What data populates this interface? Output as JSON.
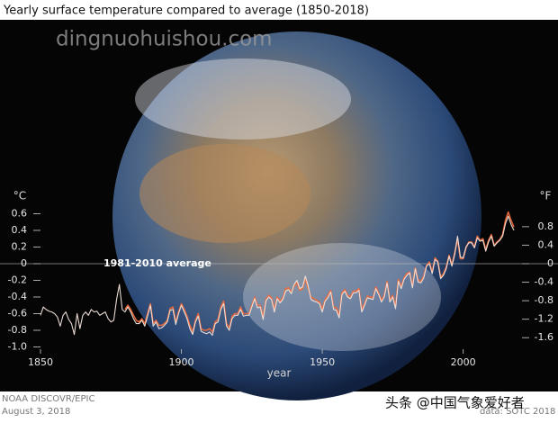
{
  "chart_data": {
    "type": "line",
    "title": "Yearly surface temperature compared to average (1850-2018)",
    "y_label": "°C",
    "y2_label": "°F",
    "x_label": "year",
    "annotation": "1981-2010 average",
    "credits": [
      "NOAA DISCOVR/EPIC",
      "August 3, 2018",
      "data: SOTC 2018"
    ],
    "watermarks": [
      "dingnuohuishou.com",
      "头条 @中国气象爱好者"
    ],
    "x": [
      1850,
      1851,
      1852,
      1853,
      1854,
      1855,
      1856,
      1857,
      1858,
      1859,
      1860,
      1861,
      1862,
      1863,
      1864,
      1865,
      1866,
      1867,
      1868,
      1869,
      1870,
      1871,
      1872,
      1873,
      1874,
      1875,
      1876,
      1877,
      1878,
      1879,
      1880,
      1881,
      1882,
      1883,
      1884,
      1885,
      1886,
      1887,
      1888,
      1889,
      1890,
      1891,
      1892,
      1893,
      1894,
      1895,
      1896,
      1897,
      1898,
      1899,
      1900,
      1901,
      1902,
      1903,
      1904,
      1905,
      1906,
      1907,
      1908,
      1909,
      1910,
      1911,
      1912,
      1913,
      1914,
      1915,
      1916,
      1917,
      1918,
      1919,
      1920,
      1921,
      1922,
      1923,
      1924,
      1925,
      1926,
      1927,
      1928,
      1929,
      1930,
      1931,
      1932,
      1933,
      1934,
      1935,
      1936,
      1937,
      1938,
      1939,
      1940,
      1941,
      1942,
      1943,
      1944,
      1945,
      1946,
      1947,
      1948,
      1949,
      1950,
      1951,
      1952,
      1953,
      1954,
      1955,
      1956,
      1957,
      1958,
      1959,
      1960,
      1961,
      1962,
      1963,
      1964,
      1965,
      1966,
      1967,
      1968,
      1969,
      1970,
      1971,
      1972,
      1973,
      1974,
      1975,
      1976,
      1977,
      1978,
      1979,
      1980,
      1981,
      1982,
      1983,
      1984,
      1985,
      1986,
      1987,
      1988,
      1989,
      1990,
      1991,
      1992,
      1993,
      1994,
      1995,
      1996,
      1997,
      1998,
      1999,
      2000,
      2001,
      2002,
      2003,
      2004,
      2005,
      2006,
      2007,
      2008,
      2009,
      2010,
      2011,
      2012,
      2013,
      2014,
      2015,
      2016,
      2017,
      2018
    ],
    "series": [
      {
        "color": "#f3e4dc",
        "values": [
          -0.62,
          -0.52,
          -0.55,
          -0.57,
          -0.58,
          -0.6,
          -0.64,
          -0.75,
          -0.62,
          -0.58,
          -0.67,
          -0.72,
          -0.85,
          -0.6,
          -0.78,
          -0.62,
          -0.58,
          -0.62,
          -0.55,
          -0.58,
          -0.57,
          -0.62,
          -0.6,
          -0.58,
          -0.66,
          -0.7,
          -0.68,
          -0.43,
          -0.25,
          -0.55,
          -0.58,
          -0.52,
          -0.58,
          -0.66,
          -0.72,
          -0.72,
          -0.68,
          -0.75,
          -0.63,
          -0.5,
          -0.75,
          -0.7,
          -0.78,
          -0.77,
          -0.74,
          -0.7,
          -0.56,
          -0.55,
          -0.73,
          -0.6,
          -0.5,
          -0.58,
          -0.66,
          -0.78,
          -0.85,
          -0.7,
          -0.63,
          -0.81,
          -0.83,
          -0.84,
          -0.82,
          -0.86,
          -0.72,
          -0.7,
          -0.55,
          -0.48,
          -0.75,
          -0.8,
          -0.66,
          -0.62,
          -0.62,
          -0.55,
          -0.63,
          -0.62,
          -0.62,
          -0.52,
          -0.42,
          -0.53,
          -0.52,
          -0.67,
          -0.45,
          -0.4,
          -0.43,
          -0.58,
          -0.42,
          -0.47,
          -0.43,
          -0.33,
          -0.31,
          -0.36,
          -0.25,
          -0.2,
          -0.3,
          -0.28,
          -0.15,
          -0.27,
          -0.43,
          -0.45,
          -0.46,
          -0.48,
          -0.58,
          -0.45,
          -0.41,
          -0.34,
          -0.55,
          -0.56,
          -0.65,
          -0.37,
          -0.33,
          -0.4,
          -0.42,
          -0.35,
          -0.35,
          -0.32,
          -0.58,
          -0.5,
          -0.41,
          -0.42,
          -0.43,
          -0.3,
          -0.37,
          -0.46,
          -0.4,
          -0.23,
          -0.46,
          -0.4,
          -0.54,
          -0.21,
          -0.3,
          -0.19,
          -0.14,
          -0.11,
          -0.29,
          -0.06,
          -0.22,
          -0.23,
          -0.17,
          -0.03,
          0.0,
          -0.12,
          0.05,
          0.02,
          -0.18,
          -0.14,
          -0.06,
          0.09,
          -0.03,
          0.11,
          0.33,
          0.08,
          0.07,
          0.2,
          0.25,
          0.25,
          0.19,
          0.31,
          0.27,
          0.28,
          0.15,
          0.26,
          0.33,
          0.21,
          0.25,
          0.28,
          0.33,
          0.48,
          0.57,
          0.47,
          0.4
        ]
      },
      {
        "color": "#ec6a3c",
        "values": [
          null,
          null,
          null,
          null,
          null,
          null,
          null,
          null,
          null,
          null,
          null,
          null,
          null,
          null,
          null,
          null,
          null,
          null,
          null,
          null,
          null,
          null,
          null,
          null,
          null,
          null,
          null,
          null,
          null,
          null,
          -0.55,
          -0.5,
          -0.55,
          -0.62,
          -0.68,
          -0.7,
          -0.66,
          -0.72,
          -0.6,
          -0.48,
          -0.72,
          -0.68,
          -0.74,
          -0.74,
          -0.72,
          -0.68,
          -0.54,
          -0.52,
          -0.7,
          -0.58,
          -0.48,
          -0.55,
          -0.63,
          -0.74,
          -0.82,
          -0.68,
          -0.6,
          -0.78,
          -0.8,
          -0.8,
          -0.78,
          -0.82,
          -0.7,
          -0.67,
          -0.52,
          -0.45,
          -0.72,
          -0.77,
          -0.63,
          -0.6,
          -0.6,
          -0.52,
          -0.6,
          -0.6,
          -0.6,
          -0.5,
          -0.4,
          -0.5,
          -0.5,
          -0.64,
          -0.43,
          -0.38,
          -0.41,
          -0.55,
          -0.4,
          -0.45,
          -0.41,
          -0.3,
          -0.29,
          -0.34,
          -0.27,
          -0.23,
          -0.32,
          -0.3,
          -0.18,
          -0.3,
          -0.4,
          -0.42,
          -0.44,
          -0.46,
          -0.55,
          -0.43,
          -0.38,
          -0.32,
          -0.52,
          -0.53,
          -0.62,
          -0.35,
          -0.31,
          -0.38,
          -0.4,
          -0.33,
          -0.33,
          -0.3,
          -0.55,
          -0.48,
          -0.39,
          -0.4,
          -0.41,
          -0.28,
          -0.35,
          -0.44,
          -0.38,
          -0.21,
          -0.44,
          -0.38,
          -0.51,
          -0.19,
          -0.28,
          -0.17,
          -0.12,
          -0.1,
          -0.27,
          -0.05,
          -0.2,
          -0.21,
          -0.15,
          -0.02,
          0.02,
          -0.1,
          0.07,
          0.03,
          -0.16,
          -0.12,
          -0.04,
          0.1,
          -0.01,
          0.13,
          0.3,
          0.06,
          0.06,
          0.19,
          0.26,
          0.26,
          0.2,
          0.33,
          0.28,
          0.3,
          0.17,
          0.28,
          0.35,
          0.22,
          0.26,
          0.29,
          0.35,
          0.52,
          0.62,
          0.52,
          0.44
        ]
      }
    ],
    "xlim": [
      1850,
      2018
    ],
    "xticks": [
      1850,
      1900,
      1950,
      2000
    ],
    "ylim": [
      -1.0,
      0.75
    ],
    "yticks": [
      0.6,
      0.4,
      0.2,
      0,
      -0.2,
      -0.4,
      -0.6,
      -0.8,
      {
        "value": -1.0,
        "label": "-1.0"
      }
    ],
    "y2lim": [
      -1.8,
      1.35
    ],
    "y2ticks": [
      0.8,
      0.4,
      0,
      -0.4,
      -0.8,
      -1.2,
      -1.6
    ],
    "grid": false
  }
}
